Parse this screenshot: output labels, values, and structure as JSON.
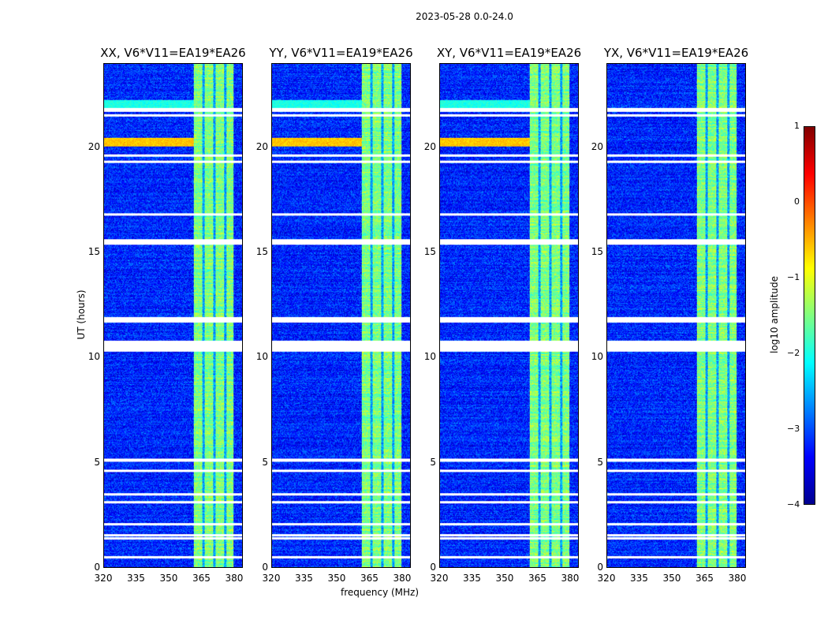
{
  "chart_data": {
    "type": "heatmap",
    "suptitle": "2023-05-28 0.0-24.0",
    "xlabel": "frequency (MHz)",
    "ylabel": "UT (hours)",
    "xlim": [
      320,
      384
    ],
    "ylim": [
      0,
      24
    ],
    "xticks": [
      "320",
      "335",
      "350",
      "365",
      "380"
    ],
    "yticks": [
      "0",
      "5",
      "10",
      "15",
      "20"
    ],
    "panels": [
      {
        "title": "XX, V6*V11=EA19*EA26",
        "pol": "XX"
      },
      {
        "title": "YY, V6*V11=EA19*EA26",
        "pol": "YY"
      },
      {
        "title": "XY, V6*V11=EA19*EA26",
        "pol": "XY"
      },
      {
        "title": "YX, V6*V11=EA19*EA26",
        "pol": "YX"
      }
    ],
    "colorbar": {
      "label": "log10 amplitude",
      "range": [
        -4,
        1
      ],
      "ticks": [
        "1",
        "0",
        "−1",
        "−2",
        "−3",
        "−4"
      ],
      "colormap": "jet"
    },
    "background_log_amp": -3.2,
    "rfi_bands_mhz": [
      [
        361.5,
        365.5
      ],
      [
        366.5,
        370.5
      ],
      [
        371.5,
        375.5
      ],
      [
        376.5,
        380
      ]
    ],
    "rfi_log_amp": -1.5,
    "flagged_hours": [
      [
        21.75,
        21.9
      ],
      [
        21.5,
        21.6
      ],
      [
        19.6,
        19.7
      ],
      [
        19.3,
        19.4
      ],
      [
        16.8,
        16.9
      ],
      [
        15.4,
        15.65
      ],
      [
        11.7,
        11.95
      ],
      [
        10.3,
        10.8
      ],
      [
        5.05,
        5.2
      ],
      [
        4.55,
        4.65
      ],
      [
        3.45,
        3.55
      ],
      [
        3.05,
        3.15
      ],
      [
        2.0,
        2.1
      ],
      [
        1.5,
        1.6
      ],
      [
        1.35,
        1.45
      ],
      [
        0.45,
        0.55
      ]
    ],
    "strong_rows": [
      {
        "hours": [
          20.1,
          20.5
        ],
        "log_amp": -0.6
      },
      {
        "hours": [
          21.9,
          22.3
        ],
        "log_amp": -2.0
      }
    ]
  }
}
